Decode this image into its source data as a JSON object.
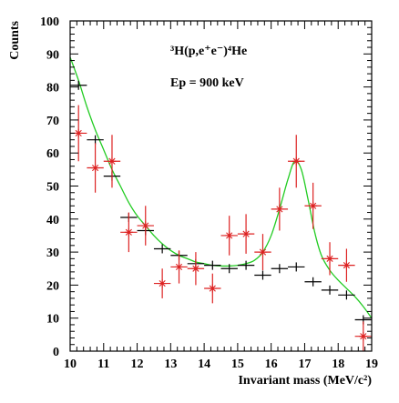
{
  "chart_data": {
    "type": "scatter",
    "xlabel": "Invariant mass (MeV/c²)",
    "ylabel": "Counts",
    "xlim": [
      10,
      19
    ],
    "ylim": [
      0,
      100
    ],
    "x_ticks": [
      "10",
      "11",
      "12",
      "13",
      "14",
      "15",
      "16",
      "17",
      "18",
      "19"
    ],
    "y_ticks": [
      "0",
      "10",
      "20",
      "30",
      "40",
      "50",
      "60",
      "70",
      "80",
      "90",
      "100"
    ],
    "annotations": {
      "reaction": "³H(p,e⁺e⁻)⁴He",
      "energy": "Ep = 900 keV"
    },
    "series": [
      {
        "marker": "cross",
        "color": "#000000",
        "points": [
          {
            "x": 10.25,
            "y": 80.5
          },
          {
            "x": 10.75,
            "y": 64
          },
          {
            "x": 11.25,
            "y": 53
          },
          {
            "x": 11.75,
            "y": 40.5
          },
          {
            "x": 12.25,
            "y": 36.5
          },
          {
            "x": 12.75,
            "y": 31
          },
          {
            "x": 13.25,
            "y": 29
          },
          {
            "x": 13.75,
            "y": 26.5
          },
          {
            "x": 14.25,
            "y": 26
          },
          {
            "x": 14.75,
            "y": 25
          },
          {
            "x": 15.25,
            "y": 26
          },
          {
            "x": 15.75,
            "y": 23
          },
          {
            "x": 16.25,
            "y": 25
          },
          {
            "x": 16.75,
            "y": 25.5
          },
          {
            "x": 17.25,
            "y": 21
          },
          {
            "x": 17.75,
            "y": 18.5
          },
          {
            "x": 18.25,
            "y": 17
          },
          {
            "x": 18.75,
            "y": 9.5
          }
        ]
      },
      {
        "marker": "star",
        "color": "#dd2222",
        "points": [
          {
            "x": 10.25,
            "y": 66,
            "err": 8.5
          },
          {
            "x": 10.75,
            "y": 55.5,
            "err": 7.5
          },
          {
            "x": 11.25,
            "y": 57.5,
            "err": 8
          },
          {
            "x": 11.75,
            "y": 36,
            "err": 6
          },
          {
            "x": 12.25,
            "y": 38,
            "err": 6
          },
          {
            "x": 12.75,
            "y": 20.5,
            "err": 4.5
          },
          {
            "x": 13.25,
            "y": 25.5,
            "err": 5
          },
          {
            "x": 13.75,
            "y": 25,
            "err": 5
          },
          {
            "x": 14.25,
            "y": 19,
            "err": 4.5
          },
          {
            "x": 14.75,
            "y": 35,
            "err": 6
          },
          {
            "x": 15.25,
            "y": 35.5,
            "err": 6
          },
          {
            "x": 15.75,
            "y": 30,
            "err": 5.5
          },
          {
            "x": 16.25,
            "y": 43,
            "err": 6.5
          },
          {
            "x": 16.75,
            "y": 57.5,
            "err": 8
          },
          {
            "x": 17.25,
            "y": 44,
            "err": 7
          },
          {
            "x": 17.75,
            "y": 28,
            "err": 5
          },
          {
            "x": 18.25,
            "y": 26,
            "err": 5
          },
          {
            "x": 18.75,
            "y": 4.5,
            "err": 4.5
          }
        ]
      },
      {
        "marker": "line",
        "color": "#22cc22",
        "points": [
          {
            "x": 10.0,
            "y": 89
          },
          {
            "x": 10.25,
            "y": 82
          },
          {
            "x": 10.5,
            "y": 74
          },
          {
            "x": 10.75,
            "y": 67
          },
          {
            "x": 11.0,
            "y": 61
          },
          {
            "x": 11.25,
            "y": 55
          },
          {
            "x": 11.5,
            "y": 50
          },
          {
            "x": 11.75,
            "y": 45
          },
          {
            "x": 12.0,
            "y": 41
          },
          {
            "x": 12.25,
            "y": 38
          },
          {
            "x": 12.5,
            "y": 35
          },
          {
            "x": 12.75,
            "y": 32.5
          },
          {
            "x": 13.0,
            "y": 30.5
          },
          {
            "x": 13.25,
            "y": 29
          },
          {
            "x": 13.5,
            "y": 28
          },
          {
            "x": 13.75,
            "y": 27
          },
          {
            "x": 14.0,
            "y": 26.5
          },
          {
            "x": 14.25,
            "y": 26
          },
          {
            "x": 14.5,
            "y": 25.8
          },
          {
            "x": 14.75,
            "y": 25.8
          },
          {
            "x": 15.0,
            "y": 26
          },
          {
            "x": 15.25,
            "y": 26.5
          },
          {
            "x": 15.5,
            "y": 27.5
          },
          {
            "x": 15.75,
            "y": 30
          },
          {
            "x": 16.0,
            "y": 35
          },
          {
            "x": 16.25,
            "y": 43
          },
          {
            "x": 16.5,
            "y": 52
          },
          {
            "x": 16.7,
            "y": 57.5
          },
          {
            "x": 16.9,
            "y": 55
          },
          {
            "x": 17.1,
            "y": 46
          },
          {
            "x": 17.3,
            "y": 36
          },
          {
            "x": 17.5,
            "y": 29
          },
          {
            "x": 17.75,
            "y": 24.5
          },
          {
            "x": 18.0,
            "y": 21.5
          },
          {
            "x": 18.25,
            "y": 19
          },
          {
            "x": 18.5,
            "y": 16.5
          },
          {
            "x": 18.75,
            "y": 13.5
          },
          {
            "x": 19.0,
            "y": 10
          }
        ]
      }
    ]
  }
}
